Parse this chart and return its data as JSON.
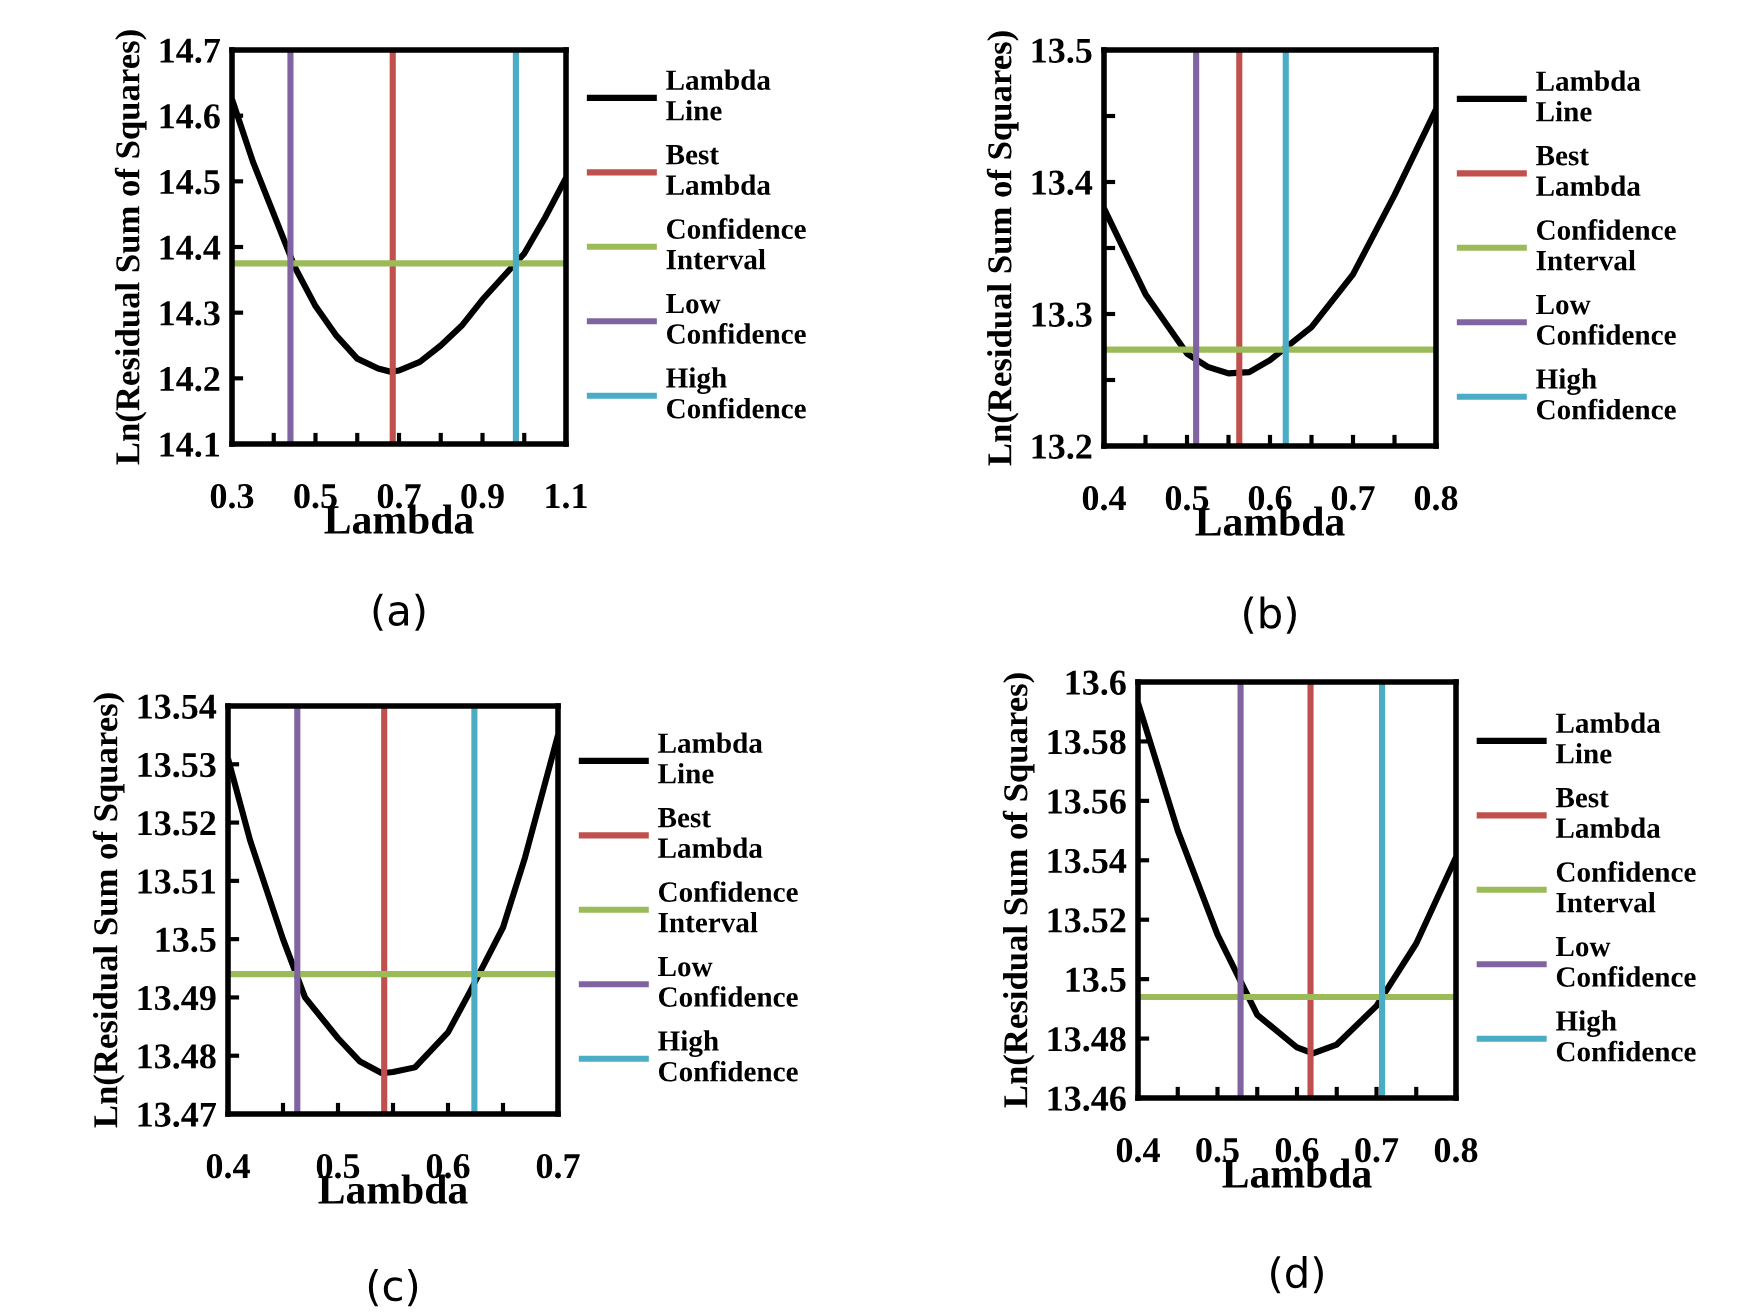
{
  "chart_data": [
    {
      "type": "line",
      "xlabel": "Lambda",
      "ylabel": "Ln(Residual Sum of Squares)",
      "annotations": [
        "(a)"
      ],
      "legend": "right",
      "grid": false,
      "xlim": [
        0.3,
        1.1
      ],
      "xticks": [
        0.3,
        {
          "value": 0.4,
          "label": null
        },
        0.5,
        {
          "value": 0.6,
          "label": null
        },
        0.7,
        {
          "value": 0.8,
          "label": null
        },
        0.9,
        {
          "value": 1.0,
          "label": null
        },
        1.1
      ],
      "ylim": [
        14.1,
        14.7
      ],
      "yticks": [
        14.1,
        14.2,
        14.3,
        14.4,
        14.5,
        14.6,
        14.7
      ],
      "series": [
        {
          "name": "Lambda Line",
          "color": "#000000",
          "x": [
            0.3,
            0.35,
            0.4,
            0.45,
            0.5,
            0.55,
            0.6,
            0.65,
            0.68,
            0.7,
            0.75,
            0.8,
            0.85,
            0.9,
            0.95,
            1.0,
            1.05,
            1.1
          ],
          "values": [
            14.625,
            14.53,
            14.45,
            14.37,
            14.31,
            14.265,
            14.23,
            14.215,
            14.21,
            14.212,
            14.225,
            14.25,
            14.28,
            14.32,
            14.355,
            14.39,
            14.445,
            14.505
          ]
        },
        {
          "name": "Best Lambda",
          "color": "#c0504d",
          "x": [
            0.685,
            0.685
          ],
          "values": [
            14.1,
            14.7
          ]
        },
        {
          "name": "Confidence Interval",
          "color": "#9bbb59",
          "x": [
            0.3,
            1.1
          ],
          "values": [
            14.375,
            14.375
          ]
        },
        {
          "name": "Low Confidence",
          "color": "#8064a2",
          "x": [
            0.44,
            0.44
          ],
          "values": [
            14.1,
            14.7
          ]
        },
        {
          "name": "High Confidence",
          "color": "#4bacc6",
          "x": [
            0.98,
            0.98
          ],
          "values": [
            14.1,
            14.7
          ]
        }
      ]
    },
    {
      "type": "line",
      "xlabel": "Lambda",
      "ylabel": "Ln(Residual Sum of Squares)",
      "annotations": [
        "(b)"
      ],
      "legend": "right",
      "grid": false,
      "xlim": [
        0.4,
        0.8
      ],
      "xticks": [
        0.4,
        {
          "value": 0.45,
          "label": null
        },
        0.5,
        {
          "value": 0.55,
          "label": null
        },
        0.6,
        {
          "value": 0.65,
          "label": null
        },
        0.7,
        {
          "value": 0.75,
          "label": null
        },
        0.8
      ],
      "ylim": [
        13.2,
        13.5
      ],
      "yticks": [
        13.2,
        {
          "value": 13.25,
          "label": null
        },
        13.3,
        {
          "value": 13.35,
          "label": null
        },
        13.4,
        {
          "value": 13.45,
          "label": null
        },
        13.5
      ],
      "series": [
        {
          "name": "Lambda Line",
          "color": "#000000",
          "x": [
            0.4,
            0.45,
            0.5,
            0.525,
            0.55,
            0.575,
            0.6,
            0.65,
            0.7,
            0.75,
            0.8
          ],
          "values": [
            13.38,
            13.315,
            13.27,
            13.26,
            13.255,
            13.256,
            13.265,
            13.29,
            13.33,
            13.39,
            13.455
          ]
        },
        {
          "name": "Best Lambda",
          "color": "#c0504d",
          "x": [
            0.563,
            0.563
          ],
          "values": [
            13.2,
            13.5
          ]
        },
        {
          "name": "Confidence Interval",
          "color": "#9bbb59",
          "x": [
            0.4,
            0.8
          ],
          "values": [
            13.273,
            13.273
          ]
        },
        {
          "name": "Low Confidence",
          "color": "#8064a2",
          "x": [
            0.511,
            0.511
          ],
          "values": [
            13.2,
            13.5
          ]
        },
        {
          "name": "High Confidence",
          "color": "#4bacc6",
          "x": [
            0.619,
            0.619
          ],
          "values": [
            13.2,
            13.5
          ]
        }
      ]
    },
    {
      "type": "line",
      "xlabel": "Lambda",
      "ylabel": "Ln(Residual Sum of Squares)",
      "annotations": [
        "(c)"
      ],
      "legend": "right",
      "grid": false,
      "xlim": [
        0.4,
        0.7
      ],
      "xticks": [
        0.4,
        {
          "value": 0.45,
          "label": null
        },
        0.5,
        {
          "value": 0.55,
          "label": null
        },
        0.6,
        {
          "value": 0.65,
          "label": null
        },
        0.7
      ],
      "ylim": [
        13.47,
        13.54
      ],
      "yticks": [
        13.47,
        13.48,
        13.49,
        {
          "value": 13.5,
          "label": "13.5"
        },
        13.51,
        13.52,
        13.53,
        13.54
      ],
      "series": [
        {
          "name": "Lambda Line",
          "color": "#000000",
          "x": [
            0.4,
            0.42,
            0.45,
            0.47,
            0.5,
            0.52,
            0.54,
            0.55,
            0.57,
            0.6,
            0.62,
            0.65,
            0.67,
            0.7
          ],
          "values": [
            13.531,
            13.517,
            13.5,
            13.49,
            13.483,
            13.479,
            13.477,
            13.4772,
            13.478,
            13.484,
            13.491,
            13.502,
            13.514,
            13.535
          ]
        },
        {
          "name": "Best Lambda",
          "color": "#c0504d",
          "x": [
            0.542,
            0.542
          ],
          "values": [
            13.47,
            13.54
          ]
        },
        {
          "name": "Confidence Interval",
          "color": "#9bbb59",
          "x": [
            0.4,
            0.7
          ],
          "values": [
            13.494,
            13.494
          ]
        },
        {
          "name": "Low Confidence",
          "color": "#8064a2",
          "x": [
            0.463,
            0.463
          ],
          "values": [
            13.47,
            13.54
          ]
        },
        {
          "name": "High Confidence",
          "color": "#4bacc6",
          "x": [
            0.624,
            0.624
          ],
          "values": [
            13.47,
            13.54
          ]
        }
      ]
    },
    {
      "type": "line",
      "xlabel": "Lambda",
      "ylabel": "Ln(Residual Sum of Squares)",
      "annotations": [
        "(d)"
      ],
      "legend": "right",
      "grid": false,
      "xlim": [
        0.4,
        0.8
      ],
      "xticks": [
        0.4,
        {
          "value": 0.45,
          "label": null
        },
        0.5,
        {
          "value": 0.55,
          "label": null
        },
        0.6,
        {
          "value": 0.65,
          "label": null
        },
        0.7,
        {
          "value": 0.75,
          "label": null
        },
        0.8
      ],
      "ylim": [
        13.46,
        13.6
      ],
      "yticks": [
        13.46,
        13.48,
        {
          "value": 13.5,
          "label": "13.5"
        },
        13.52,
        13.54,
        13.56,
        13.58,
        {
          "value": 13.6,
          "label": "13.6"
        }
      ],
      "series": [
        {
          "name": "Lambda Line",
          "color": "#000000",
          "x": [
            0.4,
            0.45,
            0.5,
            0.55,
            0.6,
            0.62,
            0.65,
            0.7,
            0.75,
            0.8
          ],
          "values": [
            13.593,
            13.55,
            13.515,
            13.488,
            13.477,
            13.475,
            13.478,
            13.491,
            13.512,
            13.541
          ]
        },
        {
          "name": "Best Lambda",
          "color": "#c0504d",
          "x": [
            0.617,
            0.617
          ],
          "values": [
            13.46,
            13.6
          ]
        },
        {
          "name": "Confidence Interval",
          "color": "#9bbb59",
          "x": [
            0.4,
            0.8
          ],
          "values": [
            13.494,
            13.494
          ]
        },
        {
          "name": "Low Confidence",
          "color": "#8064a2",
          "x": [
            0.529,
            0.529
          ],
          "values": [
            13.46,
            13.6
          ]
        },
        {
          "name": "High Confidence",
          "color": "#4bacc6",
          "x": [
            0.707,
            0.707
          ],
          "values": [
            13.46,
            13.6
          ]
        }
      ]
    }
  ]
}
